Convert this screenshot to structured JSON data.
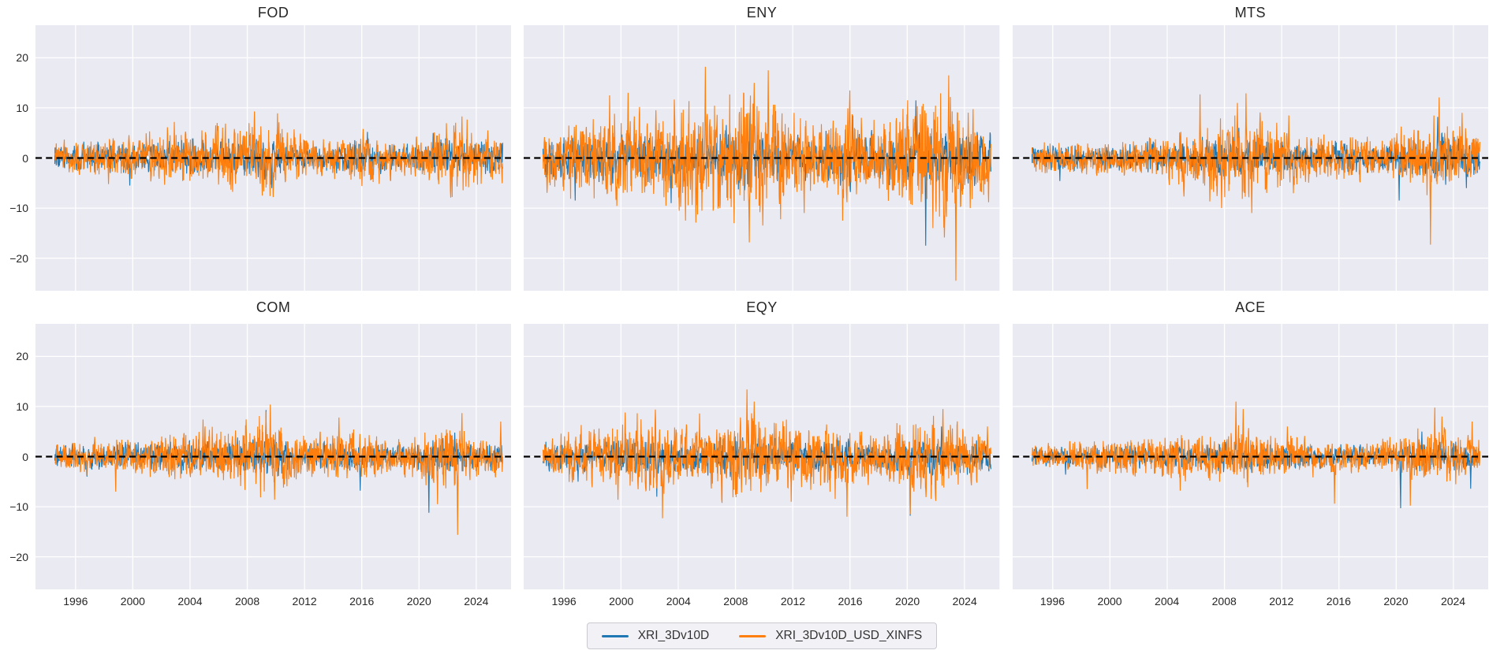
{
  "style": {
    "axes_bg": "#eaeaf2",
    "grid_color": "#ffffff",
    "text_color": "#262626",
    "zero_line_color": "#000000",
    "series_blue": "#1f77b4",
    "series_orange": "#ff7f0e",
    "legend_bg": "#f1f1f6",
    "legend_border": "#c9c9d0"
  },
  "legend": {
    "items": [
      {
        "label": "XRI_3Dv10D",
        "color": "#1f77b4"
      },
      {
        "label": "XRI_3Dv10D_USD_XINFS",
        "color": "#ff7f0e"
      }
    ]
  },
  "axes": {
    "xticks": [
      1996,
      2000,
      2004,
      2008,
      2012,
      2016,
      2020,
      2024
    ],
    "yticks": [
      20,
      10,
      0,
      -10,
      -20
    ],
    "xlim": [
      1993.2,
      2026.45
    ],
    "ylim": [
      -26.5,
      26.5
    ],
    "zero_line": {
      "style": "dashed",
      "color": "#000000",
      "width": 2.2
    },
    "grid": true
  },
  "sampling": {
    "start_year": 1994.55,
    "end_year": 2025.85,
    "points": 1560,
    "frequency": "weekly"
  },
  "chart_data": [
    {
      "type": "line",
      "title": "FOD",
      "row": 0,
      "col": 0,
      "series": [
        {
          "name": "XRI_3Dv10D",
          "color": "#1f77b4",
          "seed": 101,
          "envelope": {
            "years": [
              1994.6,
              1997,
              2000,
              2003,
              2006,
              2008.5,
              2010,
              2012,
              2014,
              2016,
              2018,
              2020,
              2021.5,
              2023,
              2025.8
            ],
            "amps": [
              2.2,
              2.4,
              2.6,
              2.8,
              3.0,
              3.6,
              3.0,
              2.2,
              2.2,
              3.2,
              2.2,
              2.4,
              3.4,
              2.8,
              2.6
            ]
          },
          "peaks": [
            [
              1999.8,
              -5.5
            ],
            [
              2009.7,
              -6.0
            ],
            [
              2016.4,
              5.2
            ],
            [
              2021.0,
              5.0
            ],
            [
              2004.2,
              3.9
            ]
          ]
        },
        {
          "name": "XRI_3Dv10D_USD_XINFS",
          "color": "#ff7f0e",
          "seed": 102,
          "envelope": {
            "years": [
              1994.6,
              1996.5,
              1998.5,
              2000.5,
              2002.8,
              2004.5,
              2006,
              2007.5,
              2009,
              2010.5,
              2012,
              2014,
              2016,
              2018,
              2019.5,
              2021,
              2022.5,
              2023.5,
              2025,
              2025.8
            ],
            "amps": [
              2.6,
              3.0,
              3.6,
              3.8,
              5.0,
              4.2,
              5.0,
              6.0,
              7.2,
              5.5,
              3.4,
              3.2,
              4.6,
              3.2,
              3.0,
              4.6,
              6.4,
              5.6,
              4.4,
              3.6
            ]
          },
          "peaks": [
            [
              2002.9,
              7.2
            ],
            [
              2008.5,
              9.3
            ],
            [
              2010.1,
              8.9
            ],
            [
              2009.05,
              -7.5
            ],
            [
              2009.8,
              -7.8
            ],
            [
              2016.1,
              5.8
            ],
            [
              2023.0,
              8.3
            ],
            [
              2022.2,
              -6.6
            ],
            [
              1998.3,
              -5.2
            ],
            [
              2005.9,
              7.0
            ],
            [
              2024.8,
              5.5
            ]
          ]
        }
      ]
    },
    {
      "type": "line",
      "title": "ENY",
      "row": 0,
      "col": 1,
      "series": [
        {
          "name": "XRI_3Dv10D",
          "color": "#1f77b4",
          "seed": 201,
          "envelope": {
            "years": [
              1994.6,
              1997,
              2000,
              2003,
              2006,
              2008.5,
              2010,
              2012,
              2014,
              2016,
              2018,
              2020,
              2021.5,
              2023,
              2025.8
            ],
            "amps": [
              3.4,
              3.8,
              4.2,
              4.0,
              4.2,
              5.5,
              4.5,
              4.0,
              3.8,
              4.8,
              4.0,
              5.0,
              5.5,
              4.5,
              4.2
            ]
          },
          "peaks": [
            [
              2021.3,
              -17.5
            ],
            [
              2020.6,
              11.5
            ],
            [
              2009.0,
              9.0
            ],
            [
              1996.8,
              -8.5
            ],
            [
              2016.2,
              8.5
            ],
            [
              2003.5,
              -9.0
            ]
          ]
        },
        {
          "name": "XRI_3Dv10D_USD_XINFS",
          "color": "#ff7f0e",
          "seed": 202,
          "envelope": {
            "years": [
              1994.6,
              1996,
              1998,
              2000,
              2002,
              2004,
              2006,
              2007.5,
              2009,
              2010.5,
              2012,
              2014,
              2015.8,
              2017,
              2018.5,
              2020,
              2021.5,
              2022.8,
              2024,
              2025.8
            ],
            "amps": [
              5.0,
              6.0,
              7.0,
              8.5,
              8.0,
              9.5,
              10.5,
              9.5,
              12.0,
              10.0,
              7.5,
              7.0,
              9.0,
              6.5,
              6.0,
              9.0,
              10.5,
              12.0,
              7.5,
              6.5
            ]
          },
          "peaks": [
            [
              2005.9,
              18.2
            ],
            [
              2010.3,
              17.5
            ],
            [
              2009.3,
              15.0
            ],
            [
              2000.5,
              13.0
            ],
            [
              2009.9,
              -13.5
            ],
            [
              2004.5,
              -12.5
            ],
            [
              2022.9,
              16.5
            ],
            [
              2023.4,
              -24.5
            ],
            [
              2021.8,
              -14.0
            ],
            [
              1999.2,
              12.5
            ],
            [
              2016.0,
              13.5
            ],
            [
              2015.5,
              -12.5
            ],
            [
              2007.9,
              -13.0
            ],
            [
              2012.8,
              -11.0
            ]
          ]
        }
      ]
    },
    {
      "type": "line",
      "title": "MTS",
      "row": 0,
      "col": 2,
      "series": [
        {
          "name": "XRI_3Dv10D",
          "color": "#1f77b4",
          "seed": 301,
          "envelope": {
            "years": [
              1994.6,
              1998,
              2002,
              2005,
              2008,
              2010,
              2013,
              2016,
              2019,
              2021,
              2023,
              2025.8
            ],
            "amps": [
              2.2,
              2.4,
              2.4,
              2.6,
              3.6,
              3.2,
              2.4,
              2.8,
              2.4,
              3.6,
              4.0,
              3.0
            ]
          },
          "peaks": [
            [
              2020.2,
              -8.5
            ],
            [
              2022.9,
              8.2
            ],
            [
              1996.5,
              -4.6
            ],
            [
              2009.0,
              6.0
            ],
            [
              2024.9,
              -6.0
            ]
          ]
        },
        {
          "name": "XRI_3Dv10D_USD_XINFS",
          "color": "#ff7f0e",
          "seed": 302,
          "envelope": {
            "years": [
              1994.6,
              1998,
              2001,
              2004,
              2005.5,
              2007,
              2008.5,
              2009.5,
              2011,
              2013,
              2015,
              2017,
              2019,
              2020.5,
              2022,
              2023.5,
              2025.8
            ],
            "amps": [
              2.6,
              3.0,
              3.4,
              4.0,
              5.5,
              6.5,
              7.5,
              8.5,
              6.0,
              5.0,
              4.2,
              3.6,
              3.6,
              5.0,
              6.5,
              6.0,
              4.2
            ]
          },
          "peaks": [
            [
              2006.3,
              12.7
            ],
            [
              2009.5,
              12.9
            ],
            [
              2008.9,
              11.0
            ],
            [
              2022.4,
              -17.3
            ],
            [
              2023.0,
              12.1
            ],
            [
              2009.9,
              -11.0
            ],
            [
              2007.8,
              -10.0
            ],
            [
              2024.6,
              9.0
            ],
            [
              2012.5,
              8.5
            ]
          ]
        }
      ]
    },
    {
      "type": "line",
      "title": "COM",
      "row": 1,
      "col": 0,
      "series": [
        {
          "name": "XRI_3Dv10D",
          "color": "#1f77b4",
          "seed": 401,
          "envelope": {
            "years": [
              1994.6,
              1998,
              2002,
              2005,
              2008,
              2010,
              2012,
              2015,
              2017,
              2019,
              2021,
              2023,
              2025.8
            ],
            "amps": [
              1.8,
              2.2,
              2.4,
              2.5,
              3.0,
              3.0,
              2.2,
              2.6,
              2.0,
              2.0,
              3.0,
              2.6,
              2.2
            ]
          },
          "peaks": [
            [
              2020.7,
              -11.2
            ],
            [
              2009.3,
              9.3
            ],
            [
              2015.9,
              -6.8
            ],
            [
              2022.5,
              4.8
            ],
            [
              1996.8,
              -4.0
            ]
          ]
        },
        {
          "name": "XRI_3Dv10D_USD_XINFS",
          "color": "#ff7f0e",
          "seed": 402,
          "envelope": {
            "years": [
              1994.6,
              1997,
              2000,
              2003,
              2005.5,
              2007.5,
              2009,
              2010.5,
              2012,
              2014,
              2016,
              2018,
              2020,
              2021.5,
              2022.7,
              2024,
              2025.8
            ],
            "amps": [
              2.4,
              2.8,
              3.0,
              4.4,
              4.8,
              5.2,
              6.5,
              5.0,
              3.8,
              4.4,
              4.6,
              3.0,
              3.6,
              5.5,
              6.0,
              3.6,
              3.2
            ]
          },
          "peaks": [
            [
              2009.6,
              10.4
            ],
            [
              2009.3,
              9.0
            ],
            [
              2022.7,
              -15.6
            ],
            [
              2023.0,
              8.7
            ],
            [
              2021.3,
              -9.5
            ],
            [
              2014.4,
              7.8
            ],
            [
              2004.9,
              7.4
            ],
            [
              2009.9,
              -8.6
            ],
            [
              1998.8,
              -7.0
            ],
            [
              2025.7,
              7.0
            ]
          ]
        }
      ]
    },
    {
      "type": "line",
      "title": "EQY",
      "row": 1,
      "col": 1,
      "series": [
        {
          "name": "XRI_3Dv10D",
          "color": "#1f77b4",
          "seed": 501,
          "envelope": {
            "years": [
              1994.6,
              1998,
              2001,
              2004,
              2008,
              2010,
              2012,
              2015,
              2017,
              2019,
              2020.5,
              2022,
              2025.8
            ],
            "amps": [
              2.4,
              2.8,
              3.2,
              2.8,
              3.6,
              3.2,
              2.6,
              3.0,
              2.4,
              2.4,
              3.6,
              3.2,
              2.4
            ]
          },
          "peaks": [
            [
              2020.2,
              -11.8
            ],
            [
              2008.9,
              6.6
            ],
            [
              2002.5,
              -8.0
            ],
            [
              2022.4,
              6.0
            ],
            [
              1997.0,
              -5.0
            ]
          ]
        },
        {
          "name": "XRI_3Dv10D_USD_XINFS",
          "color": "#ff7f0e",
          "seed": 502,
          "envelope": {
            "years": [
              1994.6,
              1996.5,
              1999,
              2000.5,
              2002.5,
              2004,
              2006,
              2008,
              2009.5,
              2011,
              2013,
              2015,
              2016.5,
              2018,
              2020,
              2021,
              2022.5,
              2024,
              2025.8
            ],
            "amps": [
              3.0,
              4.0,
              5.5,
              6.5,
              7.0,
              5.0,
              5.0,
              7.5,
              8.0,
              6.5,
              5.0,
              6.5,
              5.0,
              4.0,
              6.5,
              6.0,
              7.0,
              4.5,
              3.8
            ]
          },
          "peaks": [
            [
              2008.8,
              13.4
            ],
            [
              2009.3,
              11.0
            ],
            [
              2000.3,
              8.8
            ],
            [
              2002.9,
              -12.3
            ],
            [
              2015.8,
              -12.0
            ],
            [
              2020.2,
              -11.5
            ],
            [
              2022.5,
              9.5
            ],
            [
              2011.9,
              -9.0
            ],
            [
              1999.8,
              -8.6
            ],
            [
              2005.5,
              8.6
            ],
            [
              2025.6,
              6.0
            ]
          ]
        }
      ]
    },
    {
      "type": "line",
      "title": "ACE",
      "row": 1,
      "col": 2,
      "series": [
        {
          "name": "XRI_3Dv10D",
          "color": "#1f77b4",
          "seed": 601,
          "envelope": {
            "years": [
              1994.6,
              1998,
              2002,
              2005,
              2008,
              2010,
              2013,
              2016,
              2019,
              2021,
              2023,
              2025.8
            ],
            "amps": [
              1.5,
              1.8,
              2.2,
              2.0,
              2.6,
              2.4,
              1.8,
              2.0,
              1.6,
              2.6,
              2.8,
              2.0
            ]
          },
          "peaks": [
            [
              2020.3,
              -10.3
            ],
            [
              2021.8,
              5.0
            ],
            [
              2008.8,
              6.2
            ],
            [
              2025.2,
              -6.4
            ],
            [
              1996.9,
              -3.6
            ]
          ]
        },
        {
          "name": "XRI_3Dv10D_USD_XINFS",
          "color": "#ff7f0e",
          "seed": 602,
          "envelope": {
            "years": [
              1994.6,
              1997,
              2000,
              2002.5,
              2004.5,
              2006.5,
              2008,
              2009,
              2010.5,
              2012,
              2014,
              2016,
              2018,
              2019.5,
              2021,
              2022.5,
              2023.5,
              2025.8
            ],
            "amps": [
              2.0,
              2.4,
              2.8,
              3.8,
              4.2,
              4.0,
              5.0,
              6.0,
              4.4,
              3.4,
              3.0,
              3.0,
              2.6,
              3.6,
              4.6,
              5.2,
              4.8,
              3.0
            ]
          },
          "peaks": [
            [
              2008.8,
              11.0
            ],
            [
              2009.3,
              9.5
            ],
            [
              2015.7,
              -9.4
            ],
            [
              2021.0,
              -9.8
            ],
            [
              2022.7,
              9.8
            ],
            [
              2023.2,
              8.0
            ],
            [
              2004.9,
              -6.8
            ],
            [
              1998.4,
              -6.5
            ],
            [
              2025.3,
              7.0
            ],
            [
              2012.4,
              6.0
            ]
          ]
        }
      ]
    }
  ]
}
